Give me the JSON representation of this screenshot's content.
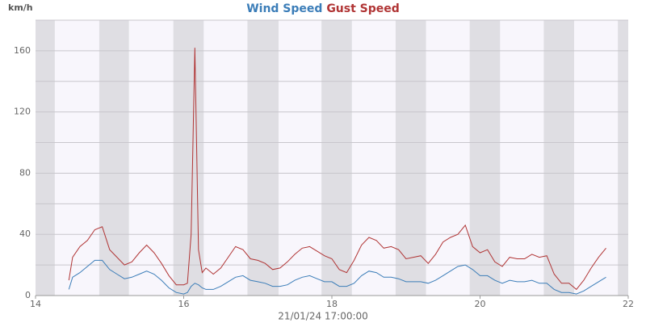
{
  "chart_data": {
    "type": "line",
    "y_label": "km/h",
    "x_label": "21/01/24 17:00:00",
    "x": [
      14.45,
      14.5,
      14.6,
      14.7,
      14.8,
      14.9,
      15.0,
      15.1,
      15.2,
      15.3,
      15.4,
      15.5,
      15.6,
      15.7,
      15.8,
      15.9,
      16.0,
      16.05,
      16.1,
      16.15,
      16.2,
      16.25,
      16.3,
      16.4,
      16.5,
      16.6,
      16.7,
      16.8,
      16.9,
      17.0,
      17.1,
      17.2,
      17.3,
      17.4,
      17.5,
      17.6,
      17.7,
      17.8,
      17.9,
      18.0,
      18.1,
      18.2,
      18.3,
      18.4,
      18.5,
      18.6,
      18.7,
      18.8,
      18.9,
      19.0,
      19.1,
      19.2,
      19.3,
      19.4,
      19.5,
      19.6,
      19.7,
      19.8,
      19.9,
      20.0,
      20.1,
      20.2,
      20.3,
      20.4,
      20.5,
      20.6,
      20.7,
      20.8,
      20.9,
      21.0,
      21.1,
      21.2,
      21.3,
      21.4,
      21.5,
      21.6,
      21.7
    ],
    "series": [
      {
        "name": "Wind Speed",
        "color": "#3b7db8",
        "values": [
          4,
          12,
          15,
          19,
          23,
          23,
          17,
          14,
          11,
          12,
          14,
          16,
          14,
          10,
          5,
          2,
          1,
          2,
          6,
          8,
          7,
          5,
          4,
          4,
          6,
          9,
          12,
          13,
          10,
          9,
          8,
          6,
          6,
          7,
          10,
          12,
          13,
          11,
          9,
          9,
          6,
          6,
          8,
          13,
          16,
          15,
          12,
          12,
          11,
          9,
          9,
          9,
          8,
          10,
          13,
          16,
          19,
          20,
          17,
          13,
          13,
          10,
          8,
          10,
          9,
          9,
          10,
          8,
          8,
          4,
          2,
          2,
          1,
          3,
          6,
          9,
          12
        ]
      },
      {
        "name": "Gust Speed",
        "color": "#b03434",
        "values": [
          10,
          25,
          32,
          36,
          43,
          45,
          30,
          25,
          20,
          22,
          28,
          33,
          28,
          21,
          13,
          7,
          7,
          8,
          40,
          162,
          30,
          15,
          18,
          14,
          18,
          25,
          32,
          30,
          24,
          23,
          21,
          17,
          18,
          22,
          27,
          31,
          32,
          29,
          26,
          24,
          17,
          15,
          23,
          33,
          38,
          36,
          31,
          32,
          30,
          24,
          25,
          26,
          21,
          27,
          35,
          38,
          40,
          46,
          32,
          28,
          30,
          22,
          19,
          25,
          24,
          24,
          27,
          25,
          26,
          14,
          8,
          8,
          4,
          10,
          18,
          25,
          31
        ]
      }
    ],
    "shaded_bands": [
      [
        14,
        14.26
      ],
      [
        14.86,
        15.26
      ],
      [
        15.86,
        16.27
      ],
      [
        16.86,
        17.28
      ],
      [
        17.86,
        18.27
      ],
      [
        18.86,
        19.27
      ],
      [
        19.86,
        20.27
      ],
      [
        20.86,
        21.27
      ],
      [
        21.86,
        22
      ]
    ],
    "xlim": [
      14,
      22
    ],
    "xticks": [
      14,
      16,
      18,
      20,
      22
    ],
    "ylim": [
      0,
      180
    ],
    "yticks": [
      0,
      40,
      80,
      120,
      160
    ],
    "y_gridlines": [
      20,
      40,
      60,
      80,
      100,
      120,
      140,
      160,
      180
    ],
    "grid": true
  }
}
